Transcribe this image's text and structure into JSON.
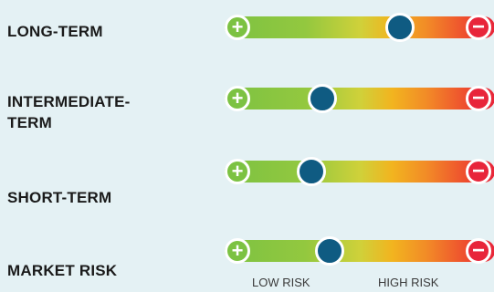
{
  "rows": [
    {
      "label": "LONG-TERM",
      "level": 0.65
    },
    {
      "label": "INTERMEDIATE-TERM",
      "level": 0.36
    },
    {
      "label": "SHORT-TERM",
      "level": 0.32
    },
    {
      "label": "MARKET RISK",
      "level": 0.39
    }
  ],
  "scale": {
    "low_label": "LOW RISK",
    "high_label": "HIGH RISK",
    "low_icon": "plus-icon",
    "high_icon": "minus-icon",
    "low_glyph": "+",
    "high_glyph": "−"
  },
  "colors": {
    "background": "#e4f1f4",
    "marker": "#0f5b82",
    "low": "#7cc242",
    "high": "#e8253a"
  }
}
